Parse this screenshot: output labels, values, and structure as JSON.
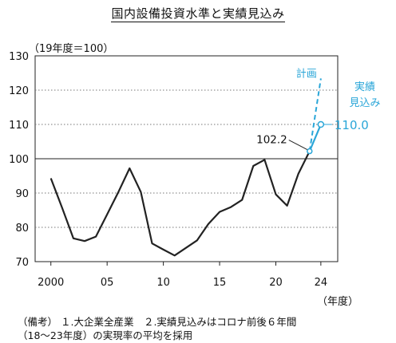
{
  "chart_data": {
    "type": "line",
    "title": "国内設備投資水準と実績見込み",
    "unit_label": "（19年度＝100）",
    "x_axis_unit": "（年度）",
    "x_ticks": [
      2000,
      2005,
      2010,
      2015,
      2020,
      2024
    ],
    "x_tick_labels": [
      "2000",
      "05",
      "10",
      "15",
      "20",
      "24"
    ],
    "xlim": [
      1998.6,
      2025.5
    ],
    "ylim": [
      70,
      130
    ],
    "y_ticks": [
      70,
      80,
      90,
      100,
      110,
      120,
      130
    ],
    "y_tick_labels": [
      "70",
      "80",
      "90",
      "100",
      "110",
      "120",
      "130"
    ],
    "grid": "horizontal dotted, solid line at 100",
    "series": [
      {
        "name": "",
        "color": "#222222",
        "x": [
          2000,
          2001,
          2002,
          2003,
          2004,
          2005,
          2006,
          2007,
          2008,
          2009,
          2010,
          2011,
          2012,
          2013,
          2014,
          2015,
          2016,
          2017,
          2018,
          2019,
          2020,
          2021,
          2022,
          2023
        ],
        "y": [
          94.3,
          85.7,
          76.8,
          76.0,
          77.3,
          83.8,
          90.3,
          97.2,
          90.3,
          75.3,
          73.5,
          71.8,
          74.0,
          76.2,
          81.0,
          84.5,
          85.9,
          88.0,
          97.9,
          99.7,
          89.6,
          86.3,
          95.6,
          102.2
        ]
      },
      {
        "name": "実績見込み",
        "color": "#2aa6d8",
        "x": [
          2023,
          2024
        ],
        "y": [
          102.2,
          110.0
        ]
      },
      {
        "name": "計画",
        "color": "#2aa6d8",
        "style": "dashed",
        "x": [
          2023,
          2024
        ],
        "y": [
          102.2,
          123.4
        ]
      }
    ],
    "annotations": {
      "label_2023": "102.2",
      "label_2024": "110.0",
      "plan_label": "計画",
      "mikomi_label_1": "実績",
      "mikomi_label_2": "見込み"
    }
  },
  "notes": [
    "（備考） １.大企業全産業　２.実績見込みはコロナ前後６年間",
    "（18～23年度）の実現率の平均を採用"
  ]
}
